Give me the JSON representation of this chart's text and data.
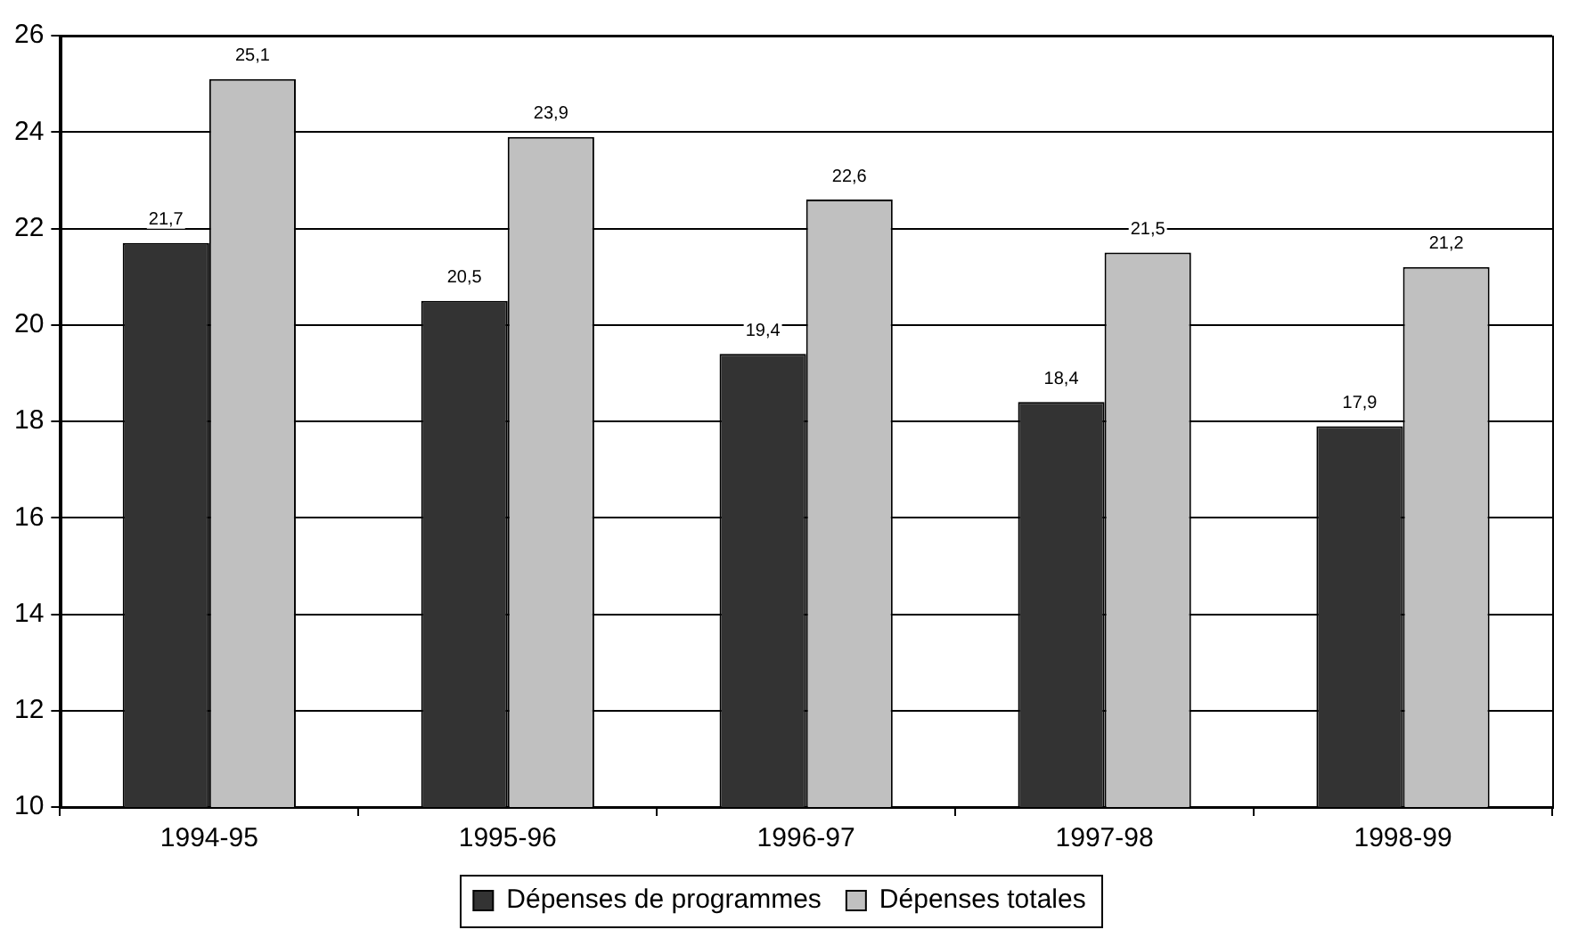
{
  "chart_data": {
    "type": "bar",
    "categories": [
      "1994-95",
      "1995-96",
      "1996-97",
      "1997-98",
      "1998-99"
    ],
    "series": [
      {
        "name": "Dépenses de programmes",
        "color": "#333333",
        "values": [
          21.7,
          20.5,
          19.4,
          18.4,
          17.9
        ],
        "value_labels": [
          "21,7",
          "20,5",
          "19,4",
          "18,4",
          "17,9"
        ]
      },
      {
        "name": "Dépenses totales",
        "color": "#c0c0c0",
        "values": [
          25.1,
          23.9,
          22.6,
          21.5,
          21.2
        ],
        "value_labels": [
          "25,1",
          "23,9",
          "22,6",
          "21,5",
          "21,2"
        ]
      }
    ],
    "ylim": [
      10,
      26
    ],
    "yticks": [
      10,
      12,
      14,
      16,
      18,
      20,
      22,
      24,
      26
    ],
    "grid": "y",
    "legend": "bottom"
  }
}
